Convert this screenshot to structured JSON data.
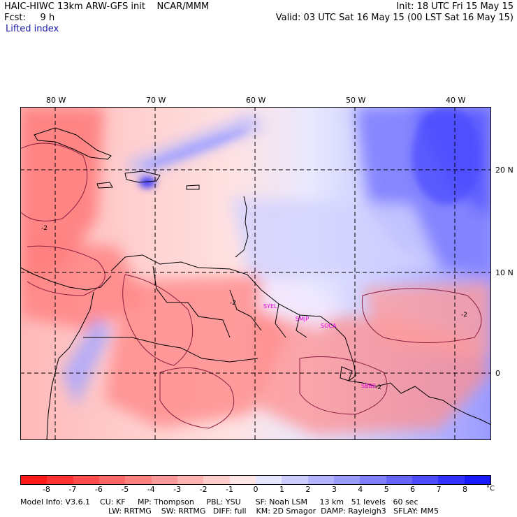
{
  "header": {
    "model_title": "HAIC-HIWC 13km ARW-GFS init    NCAR/MMM",
    "fcst_label": "Fcst:     9 h",
    "field_name": "Lifted index",
    "init": "Init: 18 UTC Fri 15 May 15",
    "valid": "Valid: 03 UTC Sat 16 May 15 (00 LST Sat 16 May 15)"
  },
  "map": {
    "lon_labels": [
      "80 W",
      "70 W",
      "60 W",
      "50 W",
      "40 W"
    ],
    "lat_labels": [
      "20 N",
      "10 N",
      "0"
    ],
    "stations": [
      "SYEL",
      "SMJP",
      "SOCA",
      "SBBE"
    ],
    "contour_labels": [
      "-2",
      "-2",
      "-2",
      "-2"
    ]
  },
  "colorbar": {
    "ticks": [
      "-8",
      "-7",
      "-6",
      "-5",
      "-4",
      "-3",
      "-2",
      "-1",
      "0",
      "1",
      "2",
      "3",
      "4",
      "5",
      "6",
      "7",
      "8"
    ],
    "unit": "°C",
    "colors": [
      "#ff1a1a",
      "#ff3333",
      "#ff4d4d",
      "#ff6666",
      "#ff7f7f",
      "#ff9999",
      "#ffb3b3",
      "#ffcccc",
      "#ffe6e6",
      "#e6e6ff",
      "#ccccff",
      "#b3b3ff",
      "#9999ff",
      "#7f7fff",
      "#6666ff",
      "#4d4dff",
      "#3333ff",
      "#1a1aff"
    ]
  },
  "model_info": {
    "line1": "Model Info: V3.6.1    CU: KF     MP: Thompson     PBL: YSU      SF: Noah LSM     13 km   51 levels   60 sec",
    "line2": "LW: RRTMG    SW: RRTMG   DIFF: full    KM: 2D Smagor  DAMP: Rayleigh3   SFLAY: MM5"
  }
}
